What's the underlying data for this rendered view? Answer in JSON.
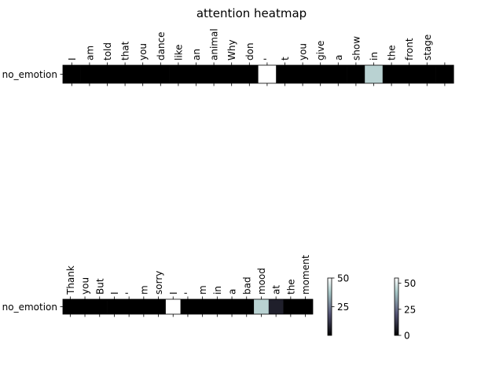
{
  "chart_data": [
    {
      "type": "heatmap",
      "title": "attention heatmap",
      "row_label": "no_emotion",
      "tokens": [
        "I",
        "am",
        "told",
        "that",
        "you",
        "dance",
        "like",
        "an",
        "animal",
        "Why",
        "don",
        "'",
        "t",
        "you",
        "give",
        "a",
        "show",
        "in",
        "the",
        "front",
        "stage",
        ""
      ],
      "values": [
        0,
        0,
        0,
        0,
        0,
        0,
        0,
        0,
        0,
        0,
        0,
        50,
        0,
        0,
        0,
        0,
        0,
        40,
        0,
        0,
        0,
        0
      ]
    },
    {
      "type": "heatmap",
      "title": "",
      "row_label": "no_emotion",
      "tokens": [
        "Thank",
        "you",
        "But",
        "I",
        "'",
        "m",
        "sorry",
        "I",
        "'",
        "m",
        "in",
        "a",
        "bad",
        "mood",
        "at",
        "the",
        "moment"
      ],
      "values": [
        0,
        0,
        0,
        0,
        0,
        0,
        0,
        50,
        0,
        0,
        0,
        0,
        0,
        40,
        7,
        0,
        0
      ]
    }
  ],
  "colorbars": [
    {
      "vmin": 0,
      "vmax": 50,
      "ticks": [
        25,
        50
      ]
    },
    {
      "vmin": 0,
      "vmax": 55,
      "ticks": [
        0,
        25,
        50
      ]
    }
  ]
}
